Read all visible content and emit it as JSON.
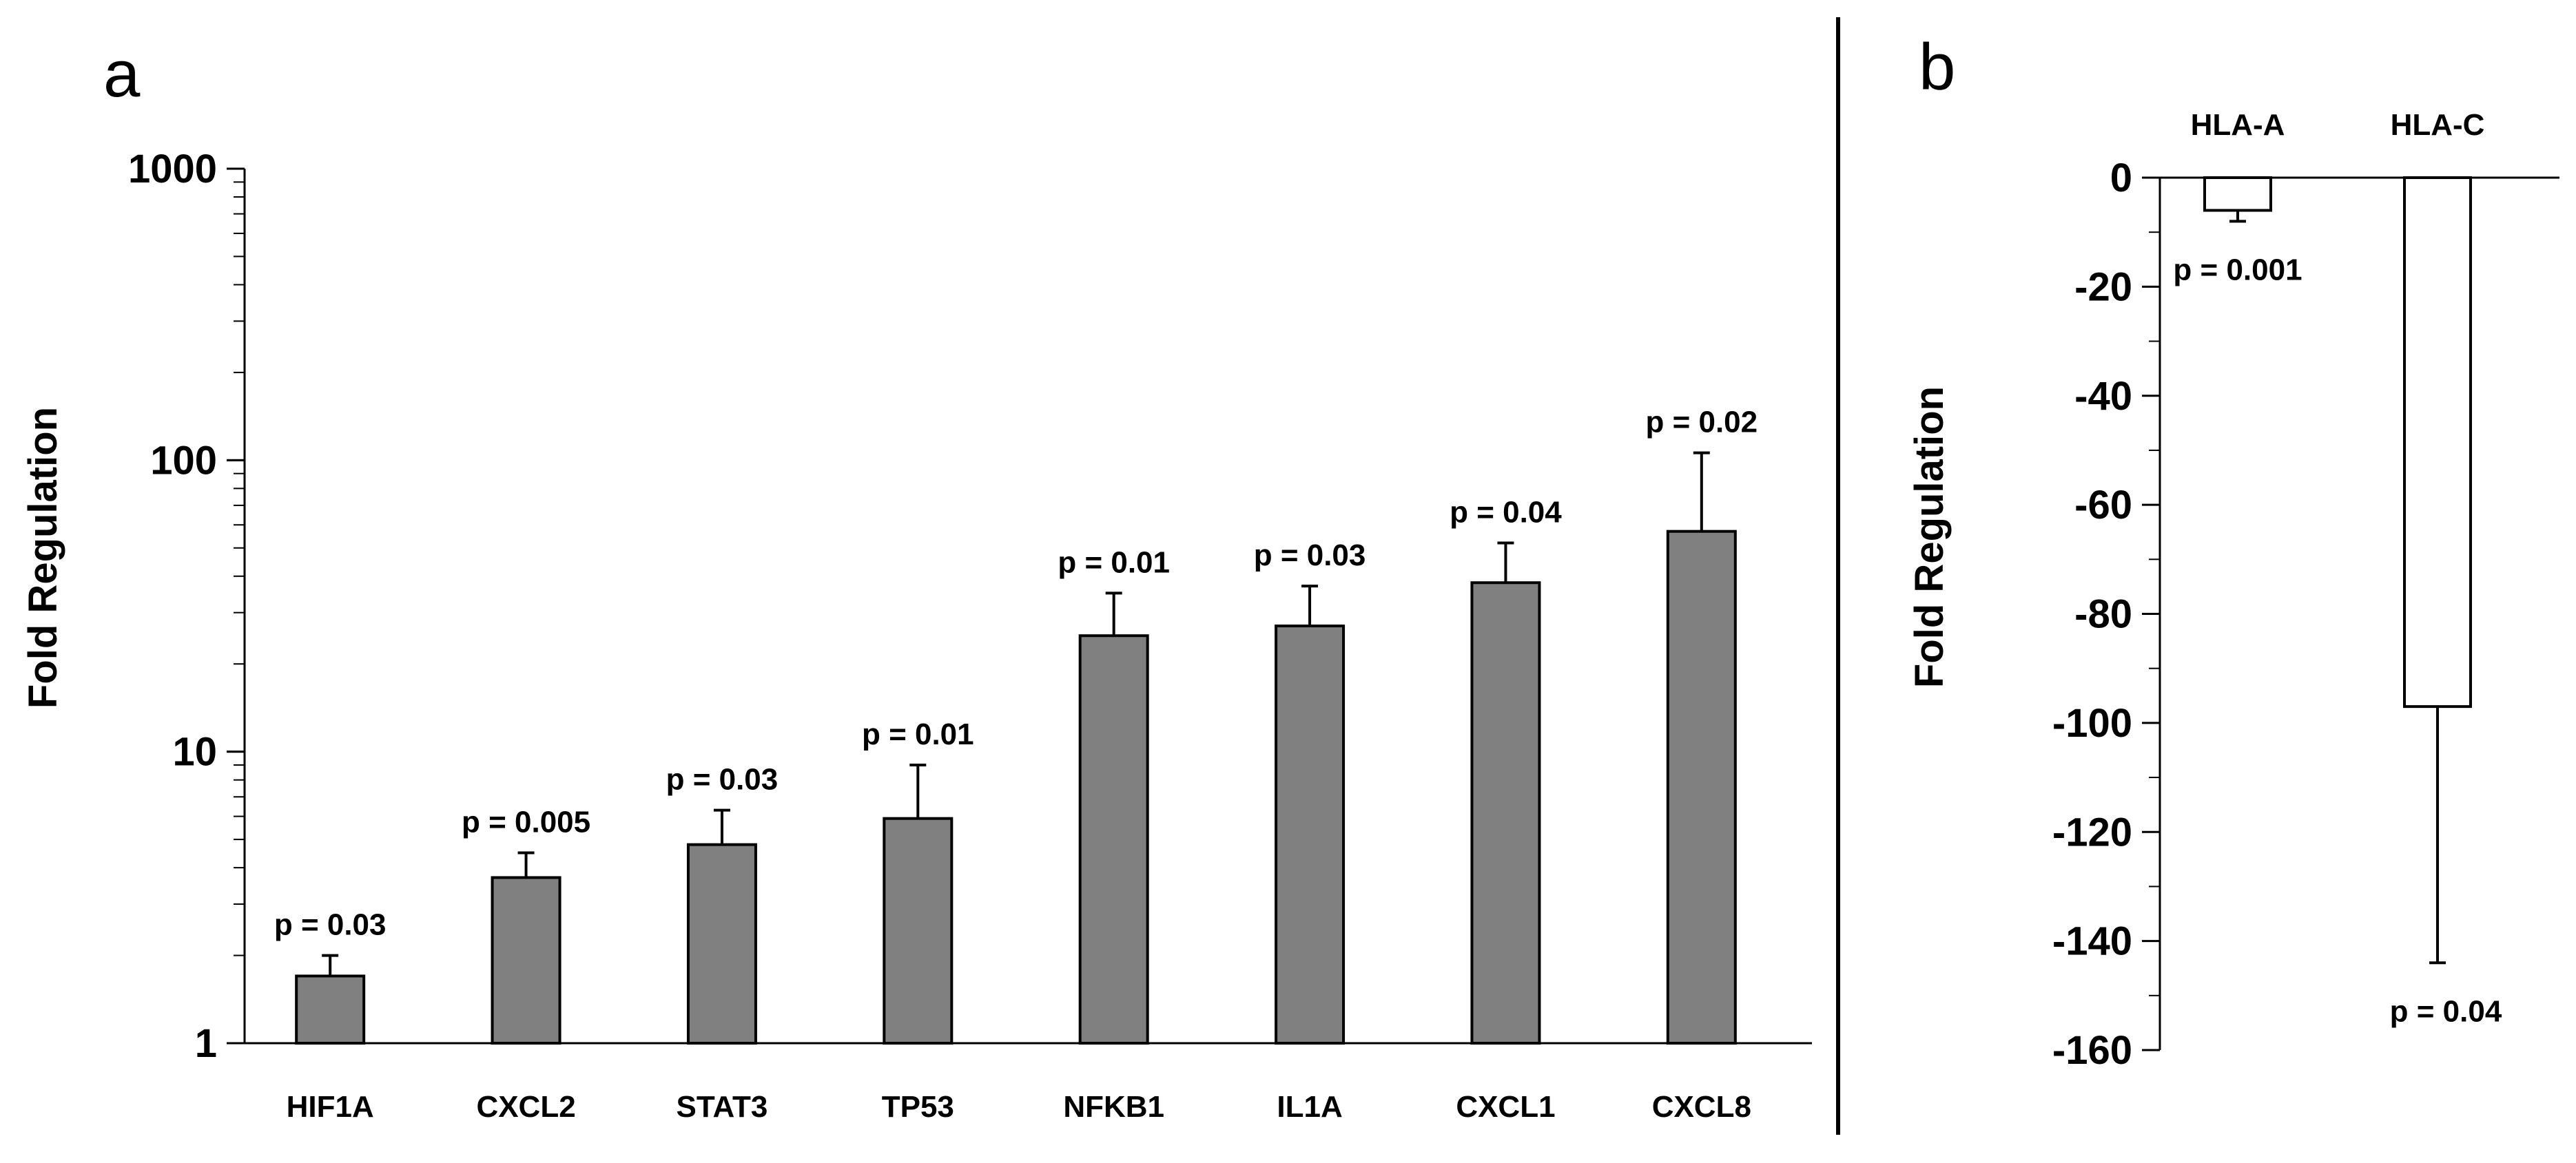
{
  "chart_data": [
    {
      "panel": "a",
      "type": "bar",
      "yscale": "log",
      "ylabel": "Fold Regulation",
      "ylim": [
        1,
        1000
      ],
      "yticks": [
        "1",
        "10",
        "100",
        "1000"
      ],
      "categories": [
        "HIF1A",
        "CXCL2",
        "STAT3",
        "TP53",
        "NFKB1",
        "IL1A",
        "CXCL1",
        "CXCL8"
      ],
      "values": [
        1.7,
        3.7,
        4.8,
        5.9,
        25,
        27,
        38,
        57
      ],
      "error_upper": [
        2.0,
        4.5,
        6.3,
        9.0,
        35,
        37,
        52,
        106
      ],
      "pvalues": [
        "p = 0.03",
        "p = 0.005",
        "p = 0.03",
        "p = 0.01",
        "p = 0.01",
        "p = 0.03",
        "p = 0.04",
        "p = 0.02"
      ],
      "bar_color": "#808080"
    },
    {
      "panel": "b",
      "type": "bar",
      "ylabel": "Fold Regulation",
      "ylim": [
        -160,
        0
      ],
      "yticks": [
        "0",
        "-20",
        "-40",
        "-60",
        "-80",
        "-100",
        "-120",
        "-140",
        "-160"
      ],
      "categories": [
        "HLA-A",
        "HLA-C"
      ],
      "values": [
        -6,
        -97
      ],
      "error_lower": [
        -8,
        -144
      ],
      "pvalues": [
        "p = 0.001",
        "p = 0.04"
      ],
      "bar_color": "#ffffff"
    }
  ]
}
